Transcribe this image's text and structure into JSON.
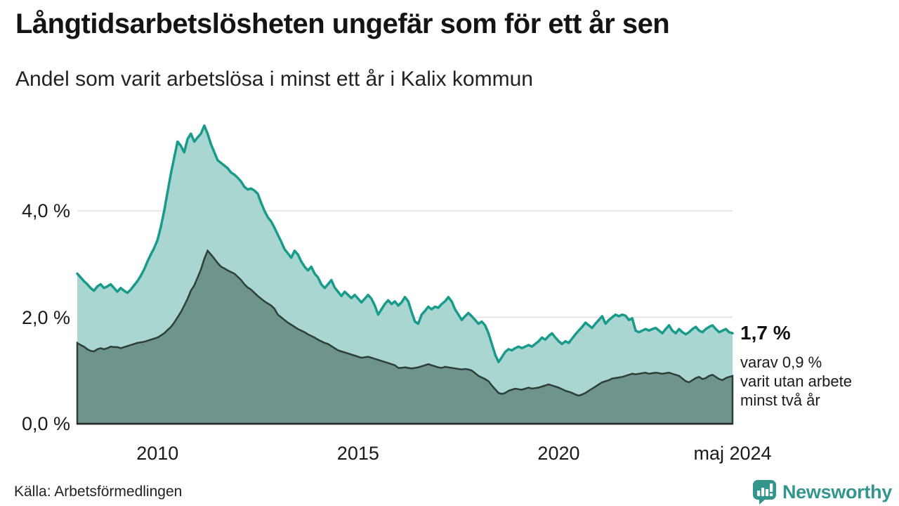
{
  "header": {
    "title": "Långtidsarbetslösheten ungefär som för ett år sen",
    "subtitle": "Andel som varit arbetslösa i minst ett år i Kalix kommun"
  },
  "annotation": {
    "headline": "1,7 %",
    "lines": [
      "varav 0,9 %",
      "varit utan arbete",
      "minst två år"
    ]
  },
  "footer": {
    "source": "Källa: Arbetsförmedlingen",
    "brand": "Newsworthy",
    "brand_icon": "newsworthy-bar-chart-bubble-icon",
    "brand_color": "#33968d"
  },
  "chart_data": {
    "type": "area",
    "title": "Långtidsarbetslösheten ungefär som för ett år sen",
    "subtitle": "Andel som varit arbetslösa i minst ett år i Kalix kommun",
    "x_unit": "month",
    "x_range": [
      "2008-01",
      "2024-05"
    ],
    "ylim": [
      0,
      6.1
    ],
    "grid": "horizontal",
    "legend": "none",
    "yticks": [
      {
        "label": "0,0 %",
        "value": 0.0
      },
      {
        "label": "2,0 %",
        "value": 2.0
      },
      {
        "label": "4,0 %",
        "value": 4.0
      }
    ],
    "xticks": [
      {
        "label": "2010",
        "index": 24
      },
      {
        "label": "2015",
        "index": 84
      },
      {
        "label": "2020",
        "index": 144
      },
      {
        "label": "maj 2024",
        "index": 196
      }
    ],
    "colors": {
      "total_stroke": "#189b8a",
      "total_fill": "#a9d6d0",
      "two_year_stroke": "#2d3e3b",
      "two_year_fill": "#6f938d",
      "gridline": "#e0e0e0",
      "baseline": "#2a2a2a"
    },
    "series": [
      {
        "name": "Arbetslösa minst ett år",
        "end_label": "1,7 %",
        "values": [
          2.82,
          2.75,
          2.68,
          2.62,
          2.55,
          2.5,
          2.58,
          2.62,
          2.55,
          2.58,
          2.62,
          2.55,
          2.48,
          2.55,
          2.5,
          2.46,
          2.52,
          2.6,
          2.68,
          2.78,
          2.9,
          3.05,
          3.18,
          3.3,
          3.45,
          3.7,
          4.0,
          4.35,
          4.7,
          5.0,
          5.3,
          5.22,
          5.1,
          5.35,
          5.45,
          5.3,
          5.38,
          5.45,
          5.6,
          5.45,
          5.25,
          5.1,
          4.95,
          4.9,
          4.85,
          4.8,
          4.72,
          4.68,
          4.62,
          4.55,
          4.45,
          4.4,
          4.42,
          4.38,
          4.32,
          4.15,
          4.0,
          3.88,
          3.8,
          3.68,
          3.55,
          3.42,
          3.28,
          3.2,
          3.12,
          3.25,
          3.18,
          3.05,
          2.95,
          2.88,
          2.95,
          2.82,
          2.75,
          2.62,
          2.55,
          2.62,
          2.7,
          2.56,
          2.48,
          2.4,
          2.48,
          2.42,
          2.36,
          2.42,
          2.35,
          2.28,
          2.35,
          2.42,
          2.35,
          2.22,
          2.05,
          2.15,
          2.25,
          2.32,
          2.25,
          2.3,
          2.22,
          2.28,
          2.38,
          2.3,
          2.1,
          1.92,
          1.88,
          2.05,
          2.12,
          2.2,
          2.15,
          2.2,
          2.18,
          2.25,
          2.3,
          2.38,
          2.3,
          2.15,
          2.05,
          1.95,
          2.02,
          2.08,
          2.02,
          1.95,
          1.88,
          1.92,
          1.85,
          1.7,
          1.5,
          1.3,
          1.16,
          1.25,
          1.35,
          1.4,
          1.38,
          1.42,
          1.45,
          1.42,
          1.45,
          1.48,
          1.45,
          1.5,
          1.55,
          1.62,
          1.58,
          1.65,
          1.7,
          1.62,
          1.55,
          1.5,
          1.55,
          1.52,
          1.6,
          1.68,
          1.75,
          1.82,
          1.9,
          1.85,
          1.8,
          1.88,
          1.95,
          2.02,
          1.88,
          1.95,
          2.0,
          2.05,
          2.02,
          2.05,
          2.03,
          1.95,
          1.98,
          1.75,
          1.72,
          1.75,
          1.78,
          1.75,
          1.78,
          1.8,
          1.75,
          1.7,
          1.78,
          1.85,
          1.75,
          1.7,
          1.78,
          1.72,
          1.68,
          1.72,
          1.78,
          1.82,
          1.75,
          1.72,
          1.78,
          1.82,
          1.85,
          1.78,
          1.72,
          1.75,
          1.78,
          1.72,
          1.7
        ]
      },
      {
        "name": "Arbetslösa minst två år",
        "end_label": "0,9 %",
        "values": [
          1.52,
          1.48,
          1.45,
          1.4,
          1.37,
          1.36,
          1.4,
          1.42,
          1.4,
          1.42,
          1.45,
          1.44,
          1.44,
          1.42,
          1.44,
          1.46,
          1.48,
          1.5,
          1.52,
          1.53,
          1.54,
          1.56,
          1.58,
          1.6,
          1.62,
          1.66,
          1.7,
          1.76,
          1.82,
          1.9,
          2.0,
          2.1,
          2.22,
          2.35,
          2.5,
          2.6,
          2.75,
          2.9,
          3.1,
          3.25,
          3.18,
          3.1,
          3.02,
          2.95,
          2.92,
          2.88,
          2.85,
          2.82,
          2.76,
          2.7,
          2.62,
          2.56,
          2.52,
          2.46,
          2.4,
          2.35,
          2.3,
          2.26,
          2.22,
          2.16,
          2.05,
          2.0,
          1.95,
          1.9,
          1.86,
          1.82,
          1.78,
          1.75,
          1.72,
          1.68,
          1.65,
          1.62,
          1.58,
          1.55,
          1.52,
          1.5,
          1.46,
          1.42,
          1.38,
          1.36,
          1.34,
          1.32,
          1.3,
          1.28,
          1.26,
          1.24,
          1.25,
          1.26,
          1.24,
          1.22,
          1.2,
          1.18,
          1.16,
          1.14,
          1.12,
          1.1,
          1.05,
          1.05,
          1.06,
          1.05,
          1.04,
          1.05,
          1.06,
          1.08,
          1.1,
          1.12,
          1.1,
          1.08,
          1.06,
          1.05,
          1.07,
          1.06,
          1.05,
          1.04,
          1.03,
          1.02,
          1.03,
          1.02,
          1.0,
          0.95,
          0.9,
          0.87,
          0.84,
          0.8,
          0.72,
          0.65,
          0.58,
          0.56,
          0.58,
          0.62,
          0.64,
          0.66,
          0.65,
          0.64,
          0.66,
          0.68,
          0.66,
          0.67,
          0.68,
          0.7,
          0.72,
          0.74,
          0.72,
          0.7,
          0.68,
          0.65,
          0.62,
          0.6,
          0.58,
          0.55,
          0.53,
          0.55,
          0.58,
          0.62,
          0.66,
          0.7,
          0.74,
          0.78,
          0.8,
          0.82,
          0.85,
          0.86,
          0.87,
          0.88,
          0.9,
          0.92,
          0.94,
          0.93,
          0.94,
          0.95,
          0.96,
          0.94,
          0.95,
          0.96,
          0.95,
          0.94,
          0.95,
          0.96,
          0.94,
          0.92,
          0.9,
          0.85,
          0.8,
          0.78,
          0.82,
          0.86,
          0.88,
          0.84,
          0.86,
          0.9,
          0.92,
          0.88,
          0.84,
          0.82,
          0.86,
          0.88,
          0.9
        ]
      }
    ]
  }
}
